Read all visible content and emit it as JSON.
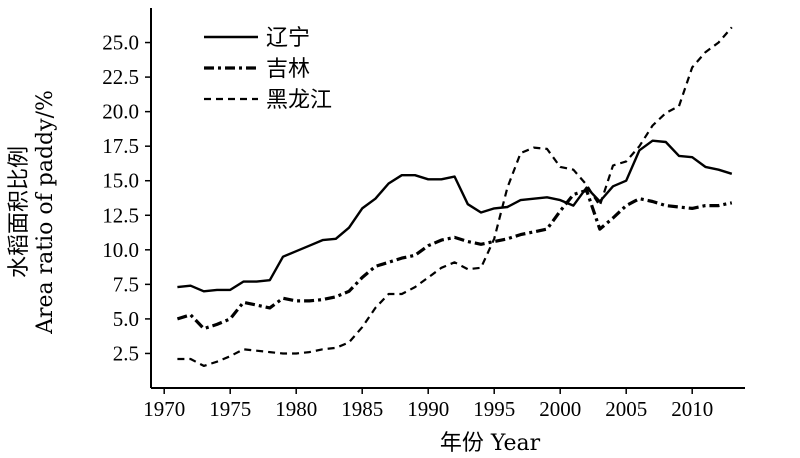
{
  "chart_data": {
    "type": "line",
    "title": "",
    "xlabel": "年份 Year",
    "ylabel": "水稻面积比例",
    "ylabel_en": "Area ratio of paddy/%",
    "xlim": [
      1969,
      2014
    ],
    "ylim": [
      0,
      27.5
    ],
    "x_ticks": [
      "1970",
      "1975",
      "1980",
      "1985",
      "1990",
      "1995",
      "2000",
      "2005",
      "2010"
    ],
    "y_ticks": [
      "2.5",
      "5.0",
      "7.5",
      "10.0",
      "12.5",
      "15.0",
      "17.5",
      "20.0",
      "22.5",
      "25.0"
    ],
    "grid": false,
    "legend_position": "top-left",
    "x": [
      1971,
      1972,
      1973,
      1974,
      1975,
      1976,
      1977,
      1978,
      1979,
      1980,
      1981,
      1982,
      1983,
      1984,
      1985,
      1986,
      1987,
      1988,
      1989,
      1990,
      1991,
      1992,
      1993,
      1994,
      1995,
      1996,
      1997,
      1998,
      1999,
      2000,
      2001,
      2002,
      2003,
      2004,
      2005,
      2006,
      2007,
      2008,
      2009,
      2010,
      2011,
      2012,
      2013
    ],
    "series": [
      {
        "name": "辽宁",
        "style": "solid",
        "color": "#000000",
        "values": [
          7.3,
          7.4,
          7.0,
          7.1,
          7.1,
          7.7,
          7.7,
          7.8,
          9.5,
          9.9,
          10.3,
          10.7,
          10.8,
          11.6,
          13.0,
          13.7,
          14.8,
          15.4,
          15.4,
          15.1,
          15.1,
          15.3,
          13.3,
          12.7,
          13.0,
          13.1,
          13.6,
          13.7,
          13.8,
          13.6,
          13.2,
          14.5,
          13.5,
          14.6,
          15.0,
          17.2,
          17.9,
          17.8,
          16.8,
          16.7,
          16.0,
          15.8,
          15.5
        ]
      },
      {
        "name": "吉林",
        "style": "dashdot",
        "color": "#000000",
        "values": [
          5.0,
          5.3,
          4.3,
          4.6,
          5.0,
          6.2,
          6.0,
          5.8,
          6.5,
          6.3,
          6.3,
          6.4,
          6.6,
          7.0,
          8.0,
          8.8,
          9.1,
          9.4,
          9.6,
          10.3,
          10.7,
          10.9,
          10.6,
          10.4,
          10.6,
          10.8,
          11.1,
          11.3,
          11.5,
          12.8,
          14.0,
          14.3,
          11.5,
          12.3,
          13.2,
          13.7,
          13.5,
          13.2,
          13.1,
          13.0,
          13.2,
          13.2,
          13.4
        ]
      },
      {
        "name": "黑龙江",
        "style": "dashed",
        "color": "#000000",
        "values": [
          2.1,
          2.1,
          1.6,
          1.9,
          2.3,
          2.8,
          2.7,
          2.6,
          2.5,
          2.5,
          2.6,
          2.8,
          2.9,
          3.3,
          4.4,
          5.8,
          6.8,
          6.8,
          7.3,
          8.0,
          8.7,
          9.1,
          8.6,
          8.7,
          10.8,
          14.5,
          17.0,
          17.4,
          17.3,
          16.0,
          15.8,
          14.7,
          13.2,
          16.1,
          16.4,
          17.5,
          19.0,
          19.9,
          20.4,
          23.2,
          24.3,
          25.0,
          26.1
        ]
      }
    ]
  }
}
